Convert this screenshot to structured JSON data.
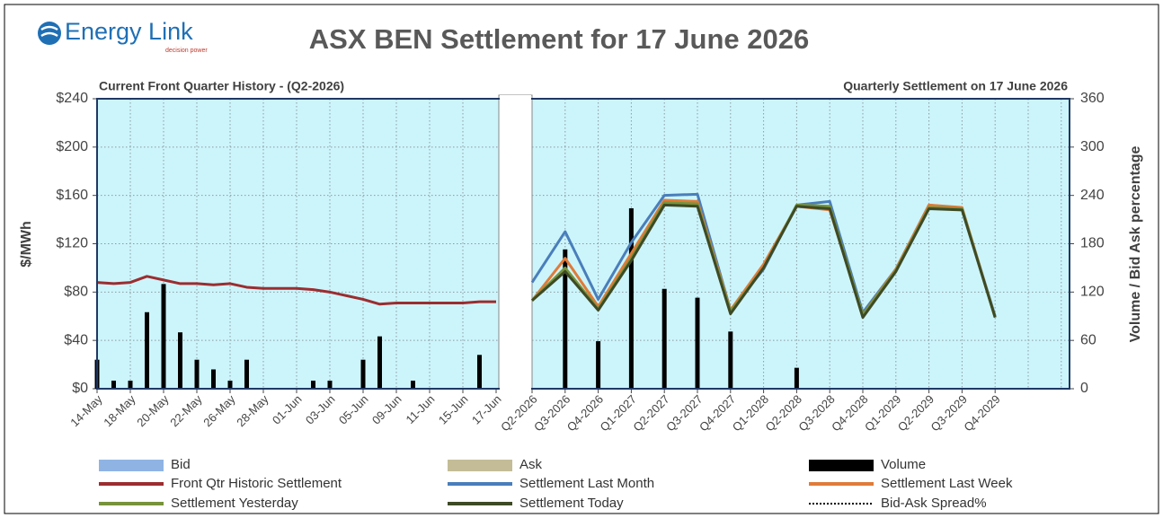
{
  "header": {
    "logo": "Energy Link",
    "tagline": "decision power",
    "title": "ASX BEN Settlement for 17 June 2026"
  },
  "chart_data": {
    "type": "combo",
    "subtitle_left": "Current Front Quarter History - (Q2-2026)",
    "subtitle_right": "Quarterly Settlement on 17 June 2026",
    "ylabel": "$/MWh",
    "y2label": "Volume / Bid Ask percentage",
    "ylim": [
      0,
      240
    ],
    "yticks": [
      {
        "value": 0,
        "label": "$0"
      },
      {
        "value": 40,
        "label": "$40"
      },
      {
        "value": 80,
        "label": "$80"
      },
      {
        "value": 120,
        "label": "$120"
      },
      {
        "value": 160,
        "label": "$160"
      },
      {
        "value": 200,
        "label": "$200"
      },
      {
        "value": 240,
        "label": "$240"
      }
    ],
    "y2lim": [
      0,
      360
    ],
    "y2ticks": [
      0,
      60,
      120,
      180,
      240,
      300,
      360
    ],
    "grid": true,
    "categories": [
      "14-May",
      null,
      "18-May",
      null,
      "20-May",
      null,
      "22-May",
      null,
      "26-May",
      null,
      "28-May",
      null,
      "01-Jun",
      null,
      "03-Jun",
      null,
      "05-Jun",
      null,
      "09-Jun",
      null,
      "11-Jun",
      null,
      "15-Jun",
      null,
      "17-Jun",
      "Q2-2026",
      "Q3-2026",
      "Q4-2026",
      "Q1-2027",
      "Q2-2027",
      "Q3-2027",
      "Q4-2027",
      "Q1-2028",
      "Q2-2028",
      "Q3-2028",
      "Q4-2028",
      "Q1-2029",
      "Q2-2029",
      "Q3-2029",
      "Q4-2029",
      null,
      null
    ],
    "series": [
      {
        "name": "Bid",
        "color": "#8fb4e3",
        "type": "bar",
        "axis": "y2",
        "values": [
          null,
          null,
          null,
          null,
          null,
          null,
          null,
          null,
          null,
          null,
          null,
          null,
          null,
          null,
          null,
          null,
          null,
          null,
          null,
          null,
          null,
          null,
          null,
          null,
          null,
          null,
          null,
          null,
          null,
          null,
          null,
          null,
          null,
          null,
          null,
          null,
          null,
          null,
          null,
          null,
          null,
          null
        ]
      },
      {
        "name": "Ask",
        "color": "#c4bc96",
        "type": "bar",
        "axis": "y2",
        "values": [
          null,
          null,
          null,
          null,
          null,
          null,
          null,
          null,
          null,
          null,
          null,
          null,
          null,
          null,
          null,
          null,
          null,
          null,
          null,
          null,
          null,
          null,
          null,
          null,
          null,
          null,
          null,
          null,
          null,
          null,
          null,
          null,
          null,
          null,
          null,
          null,
          null,
          null,
          null,
          null,
          null,
          null
        ]
      },
      {
        "name": "Volume",
        "color": "#000000",
        "type": "bar",
        "axis": "y2",
        "values": [
          36,
          10,
          10,
          95,
          130,
          70,
          36,
          24,
          10,
          36,
          0,
          0,
          0,
          10,
          10,
          0,
          36,
          65,
          0,
          10,
          0,
          0,
          0,
          42,
          0,
          0,
          173,
          59,
          224,
          124,
          113,
          71,
          0,
          26,
          0,
          0,
          0,
          0,
          0,
          0,
          null,
          null
        ]
      },
      {
        "name": "Front Qtr Historic Settlement",
        "color": "#9b2d30",
        "type": "line",
        "values": [
          88,
          87,
          88,
          93,
          90,
          87,
          87,
          86,
          87,
          84,
          83,
          83,
          83,
          82,
          80,
          77,
          74,
          70,
          71,
          71,
          71,
          71,
          71,
          72,
          72,
          null,
          null,
          null,
          null,
          null,
          null,
          null,
          null,
          null,
          null,
          null,
          null,
          null,
          null,
          null,
          null,
          null
        ]
      },
      {
        "name": "Settlement Last Month",
        "color": "#4a7ebb",
        "type": "line",
        "values": [
          null,
          null,
          null,
          null,
          null,
          null,
          null,
          null,
          null,
          null,
          null,
          null,
          null,
          null,
          null,
          null,
          null,
          null,
          null,
          null,
          null,
          null,
          null,
          null,
          null,
          88,
          130,
          74,
          121,
          160,
          161,
          65,
          99,
          152,
          155,
          63,
          99,
          152,
          149,
          60,
          null,
          null
        ]
      },
      {
        "name": "Settlement Last Week",
        "color": "#e07b39",
        "type": "line",
        "values": [
          null,
          null,
          null,
          null,
          null,
          null,
          null,
          null,
          null,
          null,
          null,
          null,
          null,
          null,
          null,
          null,
          null,
          null,
          null,
          null,
          null,
          null,
          null,
          null,
          null,
          73,
          108,
          68,
          112,
          156,
          155,
          65,
          103,
          151,
          148,
          61,
          99,
          152,
          150,
          59,
          null,
          null
        ]
      },
      {
        "name": "Settlement Yesterday",
        "color": "#77933c",
        "type": "line",
        "values": [
          null,
          null,
          null,
          null,
          null,
          null,
          null,
          null,
          null,
          null,
          null,
          null,
          null,
          null,
          null,
          null,
          null,
          null,
          null,
          null,
          null,
          null,
          null,
          null,
          null,
          73,
          100,
          66,
          108,
          154,
          153,
          64,
          100,
          152,
          151,
          61,
          98,
          150,
          149,
          59,
          null,
          null
        ]
      },
      {
        "name": "Settlement Today",
        "color": "#3d4a25",
        "type": "line",
        "values": [
          null,
          null,
          null,
          null,
          null,
          null,
          null,
          null,
          null,
          null,
          null,
          null,
          null,
          null,
          null,
          null,
          null,
          null,
          null,
          null,
          null,
          null,
          null,
          null,
          null,
          73,
          97,
          65,
          106,
          152,
          151,
          62,
          100,
          151,
          149,
          59,
          97,
          149,
          148,
          59,
          null,
          null
        ]
      },
      {
        "name": "Bid-Ask Spread%",
        "color": "#000000",
        "type": "line",
        "style": "dotted",
        "axis": "y2",
        "values": [
          0,
          0,
          0,
          0,
          0,
          0,
          0,
          0,
          0,
          0,
          0,
          0,
          0,
          0,
          0,
          0,
          0,
          0,
          0,
          0,
          0,
          0,
          0,
          0,
          0,
          null,
          null,
          null,
          null,
          null,
          null,
          null,
          null,
          null,
          null,
          null,
          null,
          null,
          null,
          null,
          null,
          null
        ]
      }
    ]
  }
}
